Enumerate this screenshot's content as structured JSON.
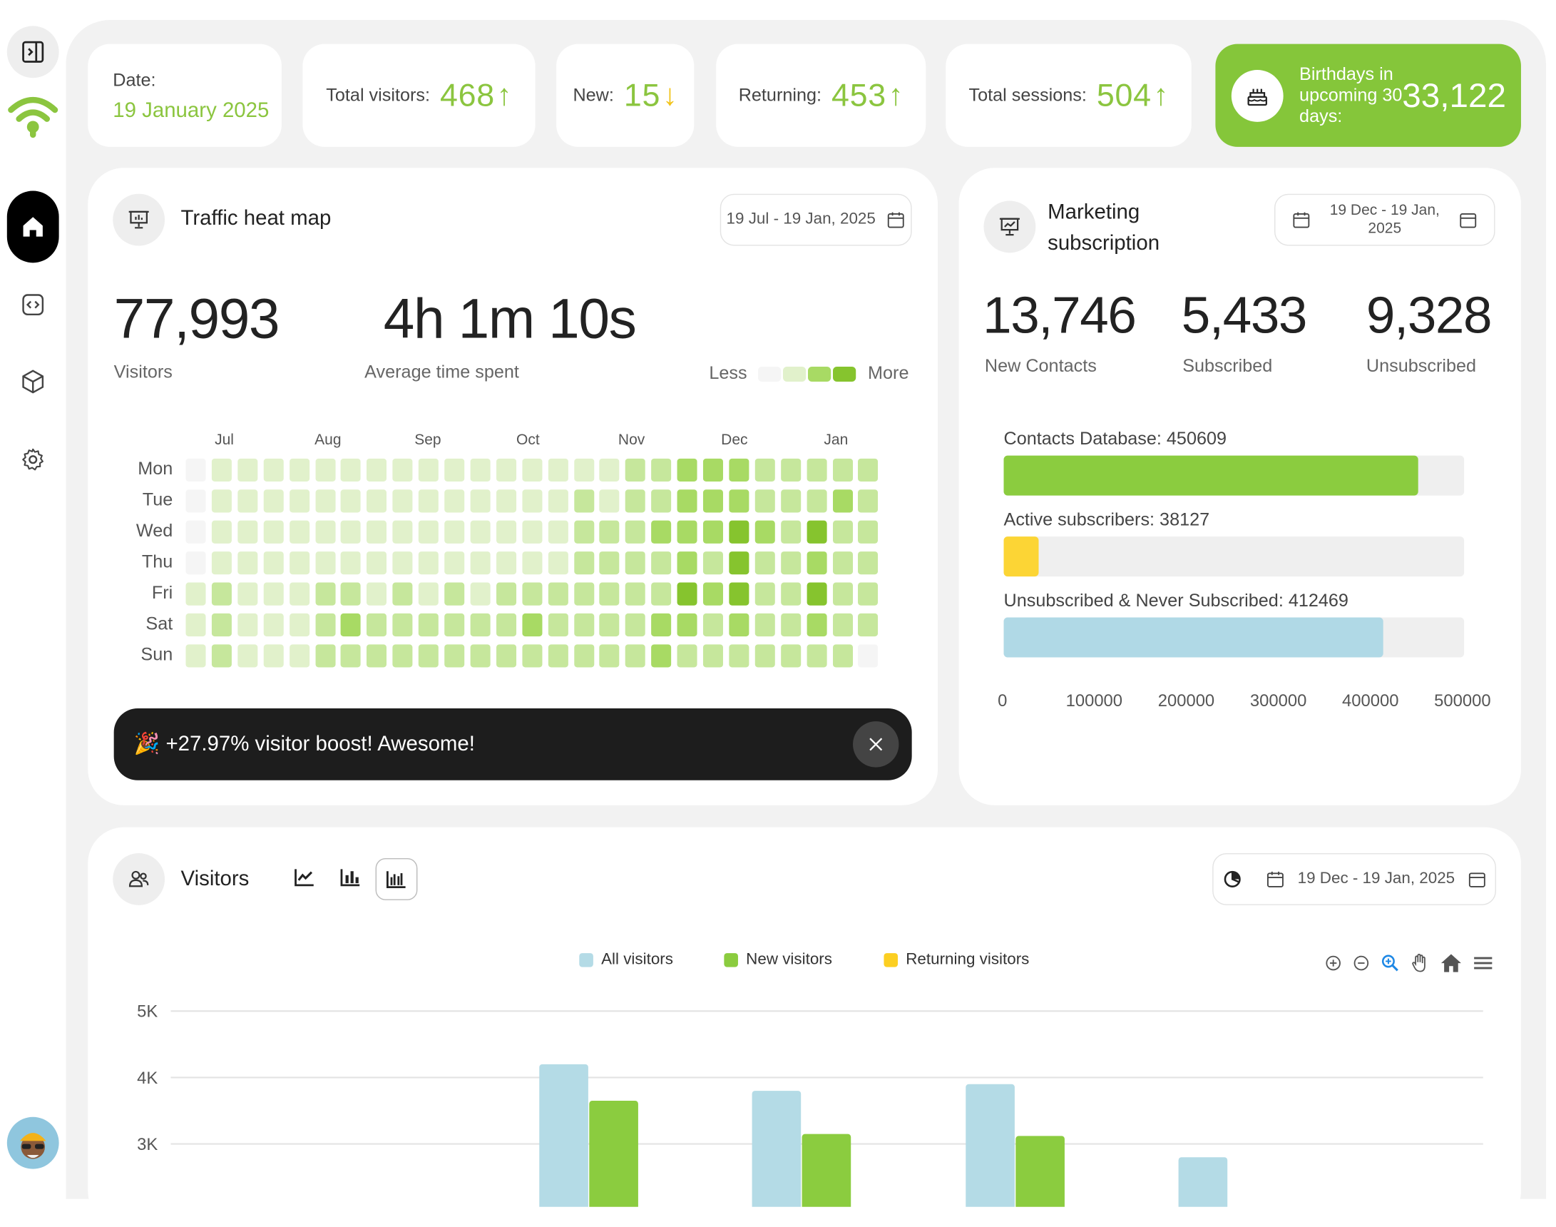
{
  "stats": {
    "date_label": "Date:",
    "date_value": "19 January 2025",
    "total_visitors_label": "Total visitors:",
    "total_visitors_value": "468",
    "new_label": "New:",
    "new_value": "15",
    "returning_label": "Returning:",
    "returning_value": "453",
    "sessions_label": "Total sessions:",
    "sessions_value": "504",
    "birthdays_label": "Birthdays in upcoming 30 days:",
    "birthdays_value": "33,122",
    "arrow_up": "↑",
    "arrow_down": "↓"
  },
  "heatmap_card": {
    "title": "Traffic heat map",
    "date_range": "19 Jul - 19 Jan, 2025",
    "visitors_value": "77,993",
    "visitors_label": "Visitors",
    "avg_time_value": "4h 1m 10s",
    "avg_time_label": "Average time spent",
    "legend_less": "Less",
    "legend_more": "More",
    "months": [
      "Jul",
      "Aug",
      "Sep",
      "Oct",
      "Nov",
      "Dec",
      "Jan"
    ],
    "days": [
      "Mon",
      "Tue",
      "Wed",
      "Thu",
      "Fri",
      "Sat",
      "Sun"
    ],
    "levels": [
      [
        0,
        1,
        1,
        1,
        1,
        1,
        1,
        1,
        1,
        1,
        1,
        1,
        1,
        1,
        1,
        1,
        1,
        2,
        2,
        3,
        3,
        3,
        2,
        2,
        2,
        2,
        2
      ],
      [
        0,
        1,
        1,
        1,
        1,
        1,
        1,
        1,
        1,
        1,
        1,
        1,
        1,
        1,
        1,
        2,
        1,
        2,
        2,
        3,
        3,
        3,
        2,
        2,
        2,
        3,
        2
      ],
      [
        0,
        1,
        1,
        1,
        1,
        1,
        1,
        1,
        1,
        1,
        1,
        1,
        1,
        1,
        1,
        2,
        2,
        2,
        3,
        3,
        3,
        4,
        3,
        2,
        4,
        2,
        2
      ],
      [
        0,
        1,
        1,
        1,
        1,
        1,
        1,
        1,
        1,
        1,
        1,
        1,
        1,
        1,
        1,
        2,
        2,
        2,
        2,
        3,
        2,
        4,
        2,
        2,
        3,
        2,
        2
      ],
      [
        1,
        2,
        1,
        1,
        1,
        2,
        2,
        1,
        2,
        1,
        2,
        1,
        2,
        2,
        2,
        2,
        2,
        2,
        2,
        4,
        3,
        4,
        2,
        2,
        4,
        2,
        2
      ],
      [
        1,
        2,
        1,
        1,
        1,
        2,
        3,
        2,
        2,
        2,
        2,
        2,
        2,
        3,
        2,
        2,
        2,
        2,
        3,
        3,
        2,
        3,
        2,
        2,
        3,
        2,
        2
      ],
      [
        1,
        2,
        1,
        1,
        1,
        2,
        2,
        2,
        2,
        2,
        2,
        2,
        2,
        2,
        2,
        2,
        2,
        2,
        3,
        2,
        2,
        2,
        2,
        2,
        2,
        2,
        0
      ]
    ],
    "palette": [
      "#f5f5f5",
      "#e1f1cb",
      "#c6e79c",
      "#a8da64",
      "#86c42e"
    ],
    "notice": "🎉 +27.97% visitor boost! Awesome!"
  },
  "marketing_card": {
    "title_line1": "Marketing",
    "title_line2": "subscription",
    "date_line1": "19 Dec - 19 Jan,",
    "date_line2": "2025",
    "new_contacts_value": "13,746",
    "new_contacts_label": "New Contacts",
    "subscribed_value": "5,433",
    "subscribed_label": "Subscribed",
    "unsubscribed_value": "9,328",
    "unsubscribed_label": "Unsubscribed"
  },
  "chart_data": [
    {
      "type": "bar",
      "orientation": "horizontal",
      "categories": [
        "Contacts Database: 450609",
        "Active subscribers: 38127",
        "Unsubscribed & Never Subscribed: 412469"
      ],
      "values": [
        450609,
        38127,
        412469
      ],
      "colors": [
        "#8bcc3f",
        "#fcd535",
        "#b0d9e6"
      ],
      "xlim": [
        0,
        500000
      ],
      "xticks": [
        "0",
        "100000",
        "200000",
        "300000",
        "400000",
        "500000"
      ]
    },
    {
      "type": "bar",
      "title": "Visitors",
      "series": [
        {
          "name": "All visitors",
          "color": "#b4dbe6",
          "values": [
            4.2,
            3.8,
            3.9,
            2.8
          ]
        },
        {
          "name": "New visitors",
          "color": "#8bcc3f",
          "values": [
            3.65,
            3.15,
            3.12,
            null
          ]
        },
        {
          "name": "Returning visitors",
          "color": "#fccf22",
          "values": [
            null,
            null,
            null,
            null
          ]
        }
      ],
      "ylim": [
        2.6,
        5
      ],
      "yticks": [
        "5K",
        "4K",
        "3K"
      ],
      "grid": true,
      "legend_position": "top-center"
    }
  ],
  "visitors_card": {
    "title": "Visitors",
    "date_range": "19 Dec - 19 Jan, 2025"
  }
}
